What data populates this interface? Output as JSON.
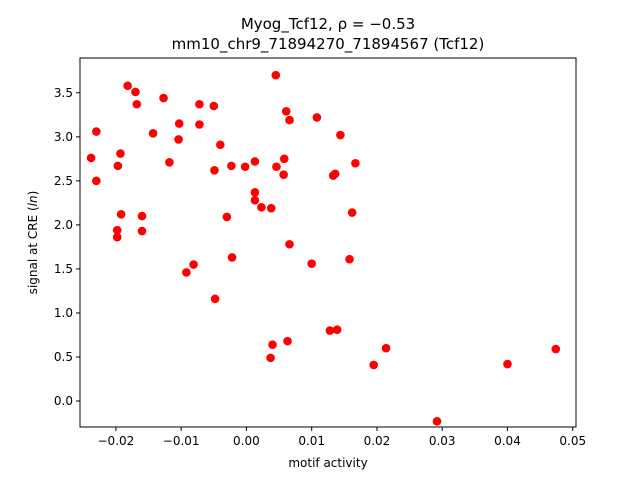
{
  "chart_data": {
    "type": "scatter",
    "title_line1": "Myog_Tcf12, ρ = −0.53",
    "title_line2": "mm10_chr9_71894270_71894567 (Tcf12)",
    "xlabel": "motif activity",
    "ylabel": "signal at CRE (ln)",
    "xlim": [
      -0.0255,
      0.0505
    ],
    "ylim": [
      -0.295,
      3.895
    ],
    "grid": false,
    "marker_color": "#ff0000",
    "x_ticks": [
      -0.02,
      -0.01,
      0.0,
      0.01,
      0.02,
      0.03,
      0.04,
      0.05
    ],
    "x_tick_labels": [
      "−0.02",
      "−0.01",
      "0.00",
      "0.01",
      "0.02",
      "0.03",
      "0.04",
      "0.05"
    ],
    "y_ticks": [
      0.0,
      0.5,
      1.0,
      1.5,
      2.0,
      2.5,
      3.0,
      3.5
    ],
    "y_tick_labels": [
      "0.0",
      "0.5",
      "1.0",
      "1.5",
      "2.0",
      "2.5",
      "3.0",
      "3.5"
    ],
    "points": [
      {
        "x": -0.0238,
        "y": 2.76
      },
      {
        "x": -0.023,
        "y": 3.06
      },
      {
        "x": -0.023,
        "y": 2.5
      },
      {
        "x": -0.0197,
        "y": 2.67
      },
      {
        "x": -0.0193,
        "y": 2.81
      },
      {
        "x": -0.0192,
        "y": 2.12
      },
      {
        "x": -0.0198,
        "y": 1.94
      },
      {
        "x": -0.0198,
        "y": 1.86
      },
      {
        "x": -0.0182,
        "y": 3.58
      },
      {
        "x": -0.017,
        "y": 3.51
      },
      {
        "x": -0.0168,
        "y": 3.37
      },
      {
        "x": -0.016,
        "y": 2.1
      },
      {
        "x": -0.016,
        "y": 1.93
      },
      {
        "x": -0.0143,
        "y": 3.04
      },
      {
        "x": -0.0127,
        "y": 3.44
      },
      {
        "x": -0.0118,
        "y": 2.71
      },
      {
        "x": -0.0103,
        "y": 3.15
      },
      {
        "x": -0.0104,
        "y": 2.97
      },
      {
        "x": -0.0092,
        "y": 1.46
      },
      {
        "x": -0.0081,
        "y": 1.55
      },
      {
        "x": -0.0072,
        "y": 3.37
      },
      {
        "x": -0.0072,
        "y": 3.14
      },
      {
        "x": -0.005,
        "y": 3.35
      },
      {
        "x": -0.0049,
        "y": 2.62
      },
      {
        "x": -0.0048,
        "y": 1.16
      },
      {
        "x": -0.004,
        "y": 2.91
      },
      {
        "x": -0.003,
        "y": 2.09
      },
      {
        "x": -0.0023,
        "y": 2.67
      },
      {
        "x": -0.0022,
        "y": 1.63
      },
      {
        "x": -0.0002,
        "y": 2.66
      },
      {
        "x": 0.0013,
        "y": 2.72
      },
      {
        "x": 0.0013,
        "y": 2.37
      },
      {
        "x": 0.0013,
        "y": 2.28
      },
      {
        "x": 0.0023,
        "y": 2.2
      },
      {
        "x": 0.0038,
        "y": 2.19
      },
      {
        "x": 0.0037,
        "y": 0.49
      },
      {
        "x": 0.004,
        "y": 0.64
      },
      {
        "x": 0.0045,
        "y": 3.7
      },
      {
        "x": 0.0046,
        "y": 2.66
      },
      {
        "x": 0.0057,
        "y": 2.57
      },
      {
        "x": 0.0058,
        "y": 2.75
      },
      {
        "x": 0.0061,
        "y": 3.29
      },
      {
        "x": 0.0066,
        "y": 3.19
      },
      {
        "x": 0.0066,
        "y": 1.78
      },
      {
        "x": 0.0063,
        "y": 0.68
      },
      {
        "x": 0.01,
        "y": 1.56
      },
      {
        "x": 0.0108,
        "y": 3.22
      },
      {
        "x": 0.0128,
        "y": 0.8
      },
      {
        "x": 0.0133,
        "y": 2.56
      },
      {
        "x": 0.0136,
        "y": 2.58
      },
      {
        "x": 0.0139,
        "y": 0.81
      },
      {
        "x": 0.0144,
        "y": 3.02
      },
      {
        "x": 0.0158,
        "y": 1.61
      },
      {
        "x": 0.0162,
        "y": 2.14
      },
      {
        "x": 0.0167,
        "y": 2.7
      },
      {
        "x": 0.0195,
        "y": 0.41
      },
      {
        "x": 0.0214,
        "y": 0.6
      },
      {
        "x": 0.0292,
        "y": -0.23
      },
      {
        "x": 0.04,
        "y": 0.42
      },
      {
        "x": 0.0474,
        "y": 0.59
      }
    ]
  }
}
